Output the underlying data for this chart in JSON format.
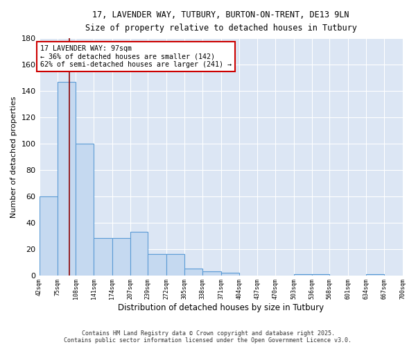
{
  "title_line1": "17, LAVENDER WAY, TUTBURY, BURTON-ON-TRENT, DE13 9LN",
  "title_line2": "Size of property relative to detached houses in Tutbury",
  "xlabel": "Distribution of detached houses by size in Tutbury",
  "ylabel": "Number of detached properties",
  "bin_edges": [
    42,
    75,
    108,
    141,
    174,
    207,
    239,
    272,
    305,
    338,
    371,
    404,
    437,
    470,
    503,
    536,
    568,
    601,
    634,
    667,
    700
  ],
  "bar_heights": [
    60,
    147,
    100,
    28,
    28,
    33,
    16,
    16,
    5,
    3,
    2,
    0,
    0,
    0,
    1,
    1,
    0,
    0,
    1,
    0
  ],
  "bar_color": "#c5d9f0",
  "bar_edge_color": "#5b9bd5",
  "plot_bg_color": "#dce6f4",
  "fig_bg_color": "#ffffff",
  "grid_color": "#ffffff",
  "red_line_x": 97,
  "annotation_line1": "17 LAVENDER WAY: 97sqm",
  "annotation_line2": "← 36% of detached houses are smaller (142)",
  "annotation_line3": "62% of semi-detached houses are larger (241) →",
  "annotation_box_facecolor": "#ffffff",
  "annotation_box_edgecolor": "#cc0000",
  "ylim": [
    0,
    180
  ],
  "yticks": [
    0,
    20,
    40,
    60,
    80,
    100,
    120,
    140,
    160,
    180
  ],
  "footer_line1": "Contains HM Land Registry data © Crown copyright and database right 2025.",
  "footer_line2": "Contains public sector information licensed under the Open Government Licence v3.0.",
  "tick_labels": [
    "42sqm",
    "75sqm",
    "108sqm",
    "141sqm",
    "174sqm",
    "207sqm",
    "239sqm",
    "272sqm",
    "305sqm",
    "338sqm",
    "371sqm",
    "404sqm",
    "437sqm",
    "470sqm",
    "503sqm",
    "536sqm",
    "568sqm",
    "601sqm",
    "634sqm",
    "667sqm",
    "700sqm"
  ]
}
